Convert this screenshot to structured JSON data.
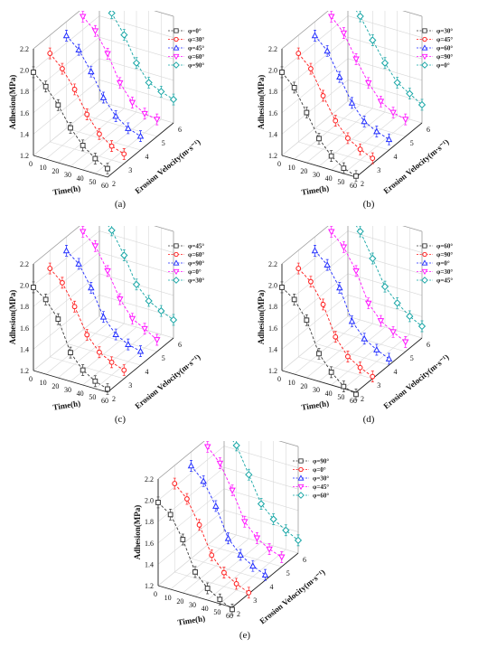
{
  "figure": {
    "captions": [
      "(a)",
      "(b)",
      "(c)",
      "(d)",
      "(e)"
    ]
  },
  "colors": {
    "series": [
      "#3a3a3a",
      "#ff1a1a",
      "#1f2bff",
      "#ff10ff",
      "#15a5a5"
    ],
    "grid": "#d8d8d8"
  },
  "chart_data": [
    {
      "type": "line",
      "panel": "(a)",
      "zlabel": "Adhesion(MPa)",
      "xlabel": "Time(h)",
      "ylabel": "Erosion Velocity(m·s⁻¹)",
      "zlim": [
        1.2,
        2.2
      ],
      "z_ticks": [
        "1.2",
        "1.4",
        "1.6",
        "1.8",
        "2.0",
        "2.2"
      ],
      "time_ticks": [
        "0",
        "10",
        "20",
        "30",
        "40",
        "50",
        "60"
      ],
      "velocity_ticks": [
        "2",
        "3",
        "4",
        "5",
        "6"
      ],
      "time": [
        0,
        10,
        20,
        30,
        40,
        50,
        60
      ],
      "grid": true,
      "legend_position": "top-right",
      "series": [
        {
          "name": "φ=0°",
          "marker": "square",
          "velocity": 2,
          "values": [
            1.98,
            1.88,
            1.74,
            1.56,
            1.43,
            1.34,
            1.28
          ]
        },
        {
          "name": "φ=30°",
          "marker": "circle",
          "velocity": 3,
          "values": [
            2.03,
            1.92,
            1.76,
            1.56,
            1.41,
            1.33,
            1.29
          ]
        },
        {
          "name": "φ=45°",
          "marker": "triangle-up",
          "velocity": 4,
          "values": [
            2.07,
            1.97,
            1.8,
            1.59,
            1.45,
            1.37,
            1.33
          ]
        },
        {
          "name": "φ=60°",
          "marker": "triangle-down",
          "velocity": 5,
          "values": [
            2.12,
            2.02,
            1.84,
            1.6,
            1.45,
            1.38,
            1.36
          ]
        },
        {
          "name": "φ=90°",
          "marker": "diamond",
          "velocity": 6,
          "values": [
            2.16,
            2.06,
            1.89,
            1.66,
            1.51,
            1.46,
            1.42
          ]
        }
      ]
    },
    {
      "type": "line",
      "panel": "(b)",
      "zlabel": "Adhesion(MPa)",
      "xlabel": "Time(h)",
      "ylabel": "Erosion Velocity(m·s⁻¹)",
      "zlim": [
        1.2,
        2.2
      ],
      "z_ticks": [
        "1.2",
        "1.4",
        "1.6",
        "1.8",
        "2.0",
        "2.2"
      ],
      "time_ticks": [
        "0",
        "10",
        "20",
        "30",
        "40",
        "50",
        "60"
      ],
      "velocity_ticks": [
        "2",
        "3",
        "4",
        "5",
        "6"
      ],
      "time": [
        0,
        10,
        20,
        30,
        40,
        50,
        60
      ],
      "grid": true,
      "legend_position": "top-right",
      "series": [
        {
          "name": "φ=30°",
          "marker": "square",
          "velocity": 2,
          "values": [
            1.98,
            1.87,
            1.67,
            1.46,
            1.33,
            1.25,
            1.21
          ]
        },
        {
          "name": "φ=45°",
          "marker": "circle",
          "velocity": 3,
          "values": [
            2.03,
            1.92,
            1.7,
            1.5,
            1.37,
            1.3,
            1.25
          ]
        },
        {
          "name": "φ=60°",
          "marker": "triangle-up",
          "velocity": 4,
          "values": [
            2.07,
            1.96,
            1.75,
            1.54,
            1.4,
            1.34,
            1.3
          ]
        },
        {
          "name": "φ=90°",
          "marker": "triangle-down",
          "velocity": 5,
          "values": [
            2.12,
            2.0,
            1.79,
            1.6,
            1.46,
            1.39,
            1.36
          ]
        },
        {
          "name": "φ=0°",
          "marker": "diamond",
          "velocity": 6,
          "values": [
            2.16,
            2.03,
            1.84,
            1.66,
            1.51,
            1.44,
            1.37
          ]
        }
      ]
    },
    {
      "type": "line",
      "panel": "(c)",
      "zlabel": "Adhesion(MPa)",
      "xlabel": "Time(h)",
      "ylabel": "Erosion Velocity(m·s⁻¹)",
      "zlim": [
        1.2,
        2.2
      ],
      "z_ticks": [
        "1.2",
        "1.4",
        "1.6",
        "1.8",
        "2.0",
        "2.2"
      ],
      "time_ticks": [
        "0",
        "10",
        "20",
        "30",
        "40",
        "50",
        "60"
      ],
      "velocity_ticks": [
        "2",
        "3",
        "4",
        "5",
        "6"
      ],
      "time": [
        0,
        10,
        20,
        30,
        40,
        50,
        60
      ],
      "grid": true,
      "legend_position": "top-right",
      "series": [
        {
          "name": "φ=45°",
          "marker": "square",
          "velocity": 2,
          "values": [
            1.98,
            1.9,
            1.75,
            1.47,
            1.34,
            1.27,
            1.23
          ]
        },
        {
          "name": "φ=60°",
          "marker": "circle",
          "velocity": 3,
          "values": [
            2.03,
            1.93,
            1.74,
            1.51,
            1.38,
            1.32,
            1.28
          ]
        },
        {
          "name": "φ=90°",
          "marker": "triangle-up",
          "velocity": 4,
          "values": [
            2.07,
            1.98,
            1.79,
            1.55,
            1.42,
            1.36,
            1.33
          ]
        },
        {
          "name": "φ=0°",
          "marker": "triangle-down",
          "velocity": 5,
          "values": [
            2.12,
            2.02,
            1.82,
            1.59,
            1.44,
            1.38,
            1.31
          ]
        },
        {
          "name": "φ=30°",
          "marker": "diamond",
          "velocity": 6,
          "values": [
            2.16,
            2.04,
            1.84,
            1.6,
            1.48,
            1.42,
            1.37
          ]
        }
      ]
    },
    {
      "type": "line",
      "panel": "(d)",
      "zlabel": "Adhesion(MPa)",
      "xlabel": "Time(h)",
      "ylabel": "Erosion Velocity(m·s⁻¹)",
      "zlim": [
        1.2,
        2.2
      ],
      "z_ticks": [
        "1.2",
        "1.4",
        "1.6",
        "1.8",
        "2.0",
        "2.2"
      ],
      "time_ticks": [
        "0",
        "10",
        "20",
        "30",
        "40",
        "50",
        "60"
      ],
      "velocity_ticks": [
        "2",
        "3",
        "4",
        "5",
        "6"
      ],
      "time": [
        0,
        10,
        20,
        30,
        40,
        50,
        60
      ],
      "grid": true,
      "legend_position": "top-right",
      "series": [
        {
          "name": "φ=60°",
          "marker": "square",
          "velocity": 2,
          "values": [
            1.98,
            1.9,
            1.74,
            1.46,
            1.32,
            1.22,
            1.18
          ]
        },
        {
          "name": "φ=90°",
          "marker": "circle",
          "velocity": 3,
          "values": [
            2.03,
            1.94,
            1.76,
            1.49,
            1.34,
            1.27,
            1.22
          ]
        },
        {
          "name": "φ=0°",
          "marker": "triangle-up",
          "velocity": 4,
          "values": [
            2.07,
            1.97,
            1.79,
            1.51,
            1.38,
            1.31,
            1.26
          ]
        },
        {
          "name": "φ=30°",
          "marker": "triangle-down",
          "velocity": 5,
          "values": [
            2.12,
            2.01,
            1.82,
            1.55,
            1.42,
            1.35,
            1.29
          ]
        },
        {
          "name": "φ=45°",
          "marker": "diamond",
          "velocity": 6,
          "values": [
            2.16,
            2.03,
            1.81,
            1.58,
            1.46,
            1.37,
            1.31
          ]
        }
      ]
    },
    {
      "type": "line",
      "panel": "(e)",
      "zlabel": "Adhesion(MPa)",
      "xlabel": "Time(h)",
      "ylabel": "Erosion Velocity(m·s⁻¹)",
      "zlim": [
        1.2,
        2.2
      ],
      "z_ticks": [
        "1.2",
        "1.4",
        "1.6",
        "1.8",
        "2.0",
        "2.2"
      ],
      "time_ticks": [
        "0",
        "10",
        "20",
        "30",
        "40",
        "50",
        "60"
      ],
      "velocity_ticks": [
        "2",
        "3",
        "4",
        "5",
        "6"
      ],
      "time": [
        0,
        10,
        20,
        30,
        40,
        50,
        60
      ],
      "grid": true,
      "legend_position": "top-right",
      "series": [
        {
          "name": "φ=90°",
          "marker": "square",
          "velocity": 2,
          "values": [
            1.98,
            1.9,
            1.7,
            1.43,
            1.31,
            1.24,
            1.18
          ]
        },
        {
          "name": "φ=0°",
          "marker": "circle",
          "velocity": 3,
          "values": [
            2.03,
            1.92,
            1.71,
            1.46,
            1.33,
            1.26,
            1.21
          ]
        },
        {
          "name": "φ=30°",
          "marker": "triangle-up",
          "velocity": 4,
          "values": [
            2.07,
            1.96,
            1.76,
            1.49,
            1.37,
            1.3,
            1.25
          ]
        },
        {
          "name": "φ=45°",
          "marker": "triangle-down",
          "velocity": 5,
          "values": [
            2.12,
            2.0,
            1.78,
            1.52,
            1.4,
            1.33,
            1.29
          ]
        },
        {
          "name": "φ=60°",
          "marker": "diamond",
          "velocity": 6,
          "values": [
            2.16,
            2.04,
            1.8,
            1.56,
            1.45,
            1.38,
            1.32
          ]
        }
      ]
    }
  ]
}
